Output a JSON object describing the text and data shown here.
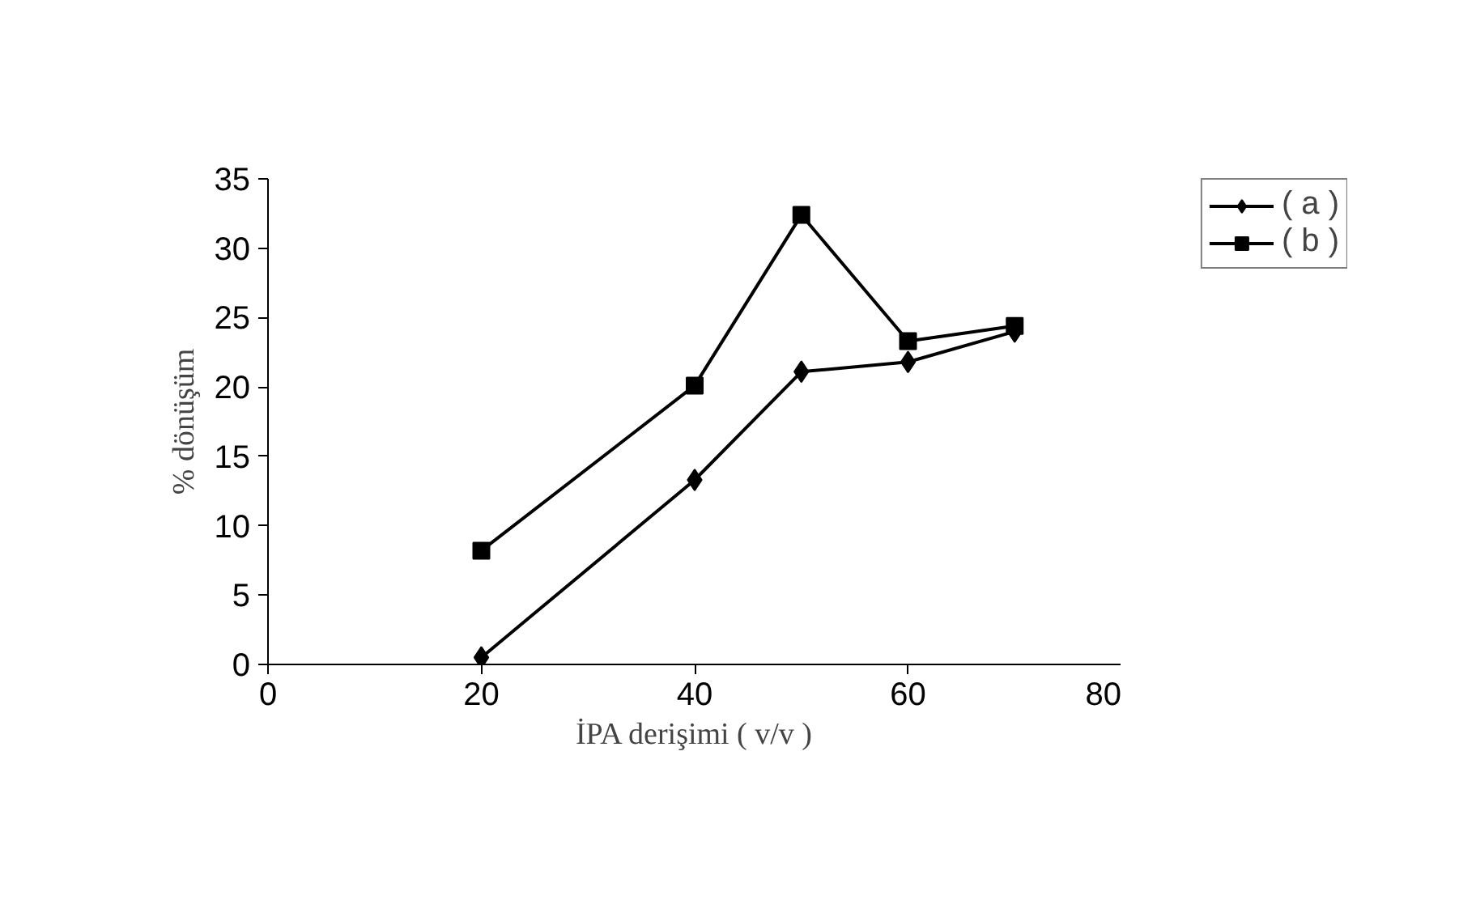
{
  "chart_data": {
    "type": "line",
    "xlabel": "İPA derişimi ( v/v )",
    "ylabel": "% dönüşüm",
    "x": [
      20,
      40,
      50,
      60,
      70
    ],
    "series": [
      {
        "name": "( a )",
        "color": "#000000",
        "marker": "diamond",
        "values": [
          0.5,
          13.3,
          21.1,
          21.8,
          24.0
        ]
      },
      {
        "name": "( b )",
        "color": "#000000",
        "marker": "square",
        "values": [
          8.2,
          20.1,
          32.4,
          23.3,
          24.4
        ]
      }
    ],
    "xlim": [
      0,
      80
    ],
    "xticks": [
      0,
      20,
      40,
      60,
      80
    ],
    "ylim": [
      0,
      35
    ],
    "yticks": [
      0,
      5,
      10,
      15,
      20,
      25,
      30,
      35
    ],
    "grid": false,
    "legend": "top right",
    "line_style": "solid"
  }
}
